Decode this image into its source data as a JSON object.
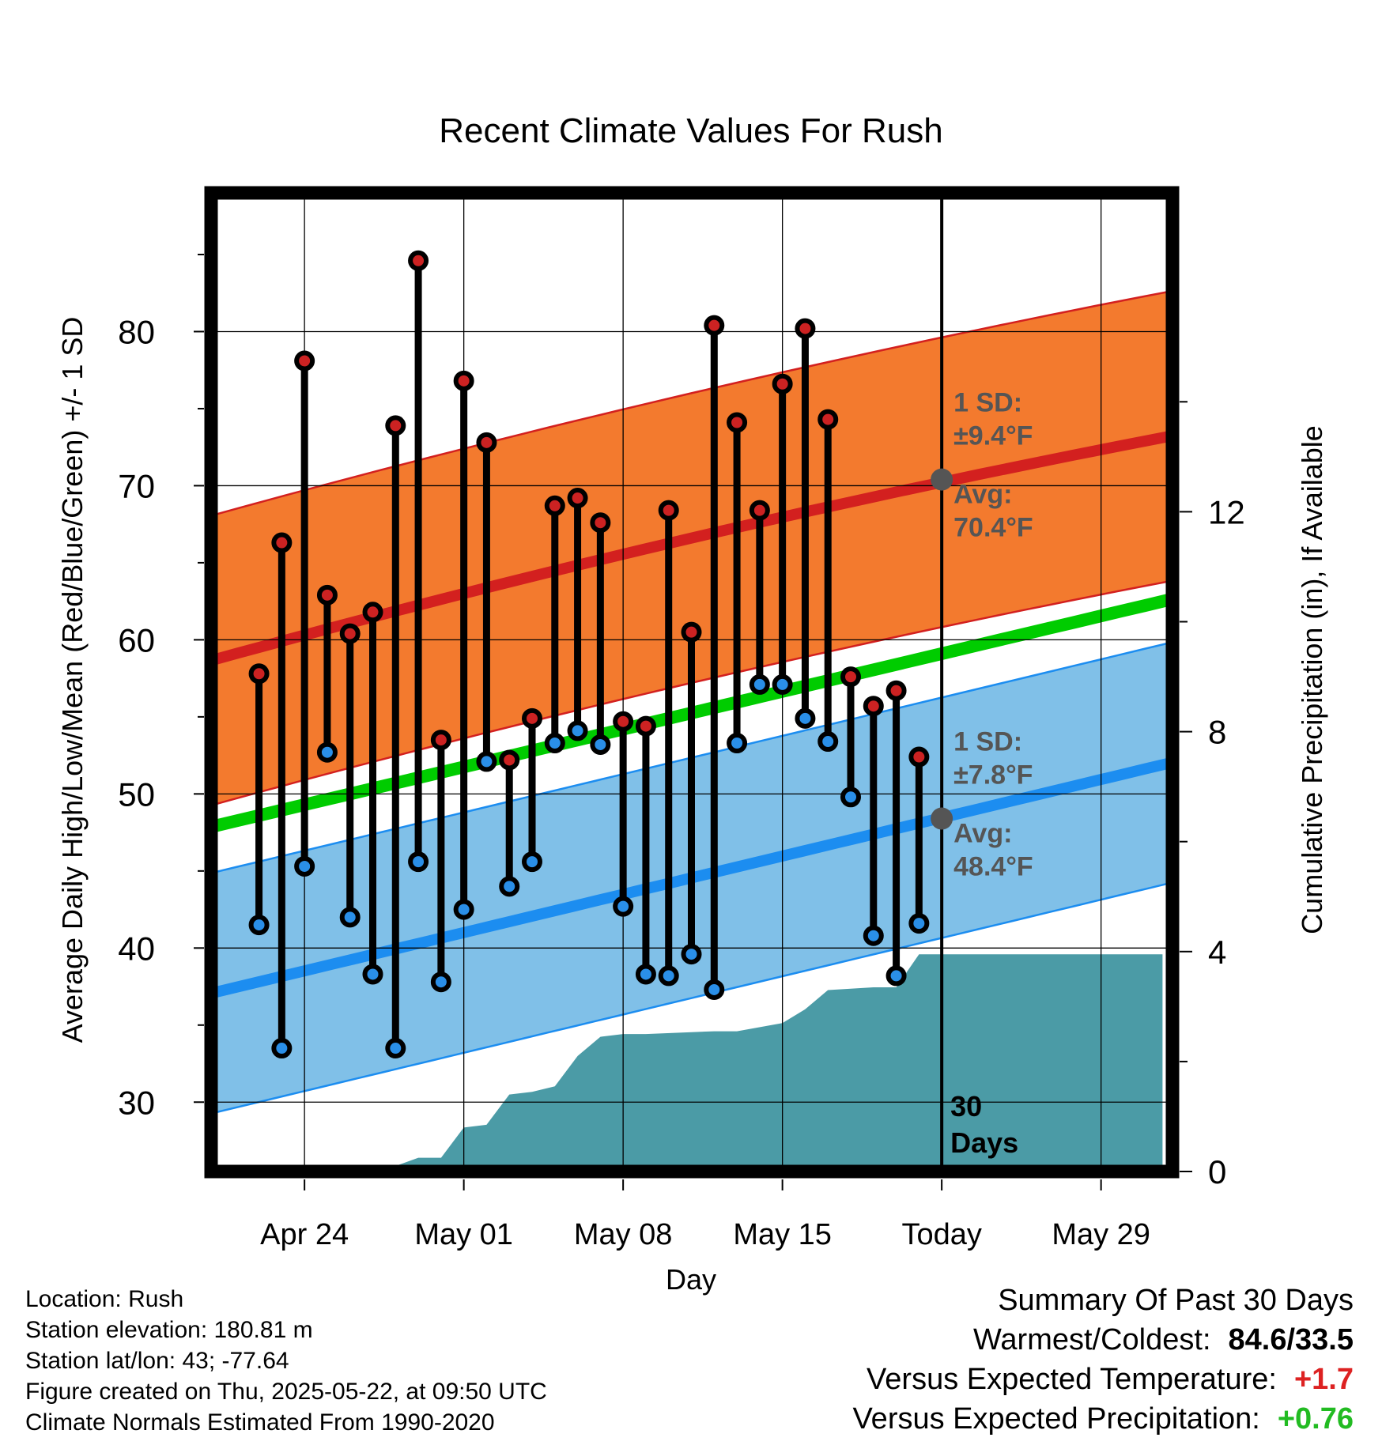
{
  "chart_data": {
    "type": "line",
    "title": "Recent Climate Values For Rush",
    "xlabel": "Day",
    "ylabel": "Average Daily High/Low/Mean (Red/Blue/Green) +/- 1 SD",
    "y2label": "Cumulative Precipitation (in), If Available",
    "x_day_range": [
      -32,
      10
    ],
    "ylim": [
      25.5,
      89
    ],
    "y_ticks": [
      30,
      40,
      50,
      60,
      70,
      80
    ],
    "y2lim": [
      0,
      17.8
    ],
    "y2_ticks": [
      0,
      4,
      8,
      12
    ],
    "x_ticks": [
      {
        "day": -28,
        "label": "Apr 24"
      },
      {
        "day": -21,
        "label": "May 01"
      },
      {
        "day": -14,
        "label": "May 08"
      },
      {
        "day": -7,
        "label": "May 15"
      },
      {
        "day": 0,
        "label": "Today"
      },
      {
        "day": 7,
        "label": "May 29"
      }
    ],
    "days": [
      -30,
      -29,
      -28,
      -27,
      -26,
      -25,
      -24,
      -23,
      -22,
      -21,
      -20,
      -19,
      -18,
      -17,
      -16,
      -15,
      -14,
      -13,
      -12,
      -11,
      -10,
      -9,
      -8,
      -7,
      -6,
      -5,
      -4,
      -3,
      -2,
      -1
    ],
    "highs": [
      57.8,
      66.3,
      78.1,
      62.9,
      60.4,
      61.8,
      73.9,
      84.6,
      53.5,
      76.8,
      72.8,
      52.2,
      54.9,
      68.7,
      69.2,
      67.6,
      54.7,
      54.4,
      68.4,
      60.5,
      80.4,
      74.1,
      68.4,
      76.6,
      80.2,
      74.3,
      57.6,
      55.7,
      56.7,
      52.4
    ],
    "lows": [
      41.5,
      33.5,
      45.3,
      52.7,
      42.0,
      38.3,
      33.5,
      45.6,
      37.8,
      42.5,
      52.1,
      44.0,
      45.6,
      53.3,
      54.1,
      53.2,
      42.7,
      38.3,
      38.2,
      39.6,
      37.3,
      53.3,
      57.1,
      57.1,
      54.9,
      53.4,
      49.8,
      40.8,
      38.2,
      41.6
    ],
    "normals": {
      "high_avg": [
        58.7,
        73.2
      ],
      "high_sd": 9.4,
      "low_avg": [
        37.1,
        52.0
      ],
      "low_sd": 7.8,
      "mean_avg": [
        47.9,
        62.6
      ]
    },
    "precip_cumulative": [
      {
        "day": -30,
        "value": 0.0
      },
      {
        "day": -26,
        "value": 0.0
      },
      {
        "day": -25,
        "value": 0.1
      },
      {
        "day": -24,
        "value": 0.1
      },
      {
        "day": -23,
        "value": 0.25
      },
      {
        "day": -22,
        "value": 0.25
      },
      {
        "day": -21,
        "value": 0.8
      },
      {
        "day": -20,
        "value": 0.85
      },
      {
        "day": -19,
        "value": 1.4
      },
      {
        "day": -18,
        "value": 1.45
      },
      {
        "day": -17,
        "value": 1.55
      },
      {
        "day": -16,
        "value": 2.1
      },
      {
        "day": -15,
        "value": 2.45
      },
      {
        "day": -14,
        "value": 2.5
      },
      {
        "day": -13,
        "value": 2.5
      },
      {
        "day": -10,
        "value": 2.55
      },
      {
        "day": -9,
        "value": 2.55
      },
      {
        "day": -7,
        "value": 2.7
      },
      {
        "day": -6,
        "value": 2.95
      },
      {
        "day": -5,
        "value": 3.3
      },
      {
        "day": -3,
        "value": 3.35
      },
      {
        "day": -2,
        "value": 3.35
      },
      {
        "day": -1,
        "value": 3.95
      },
      {
        "day": 9.7,
        "value": 3.95
      }
    ],
    "annotations": {
      "high_sd_label": "1 SD:",
      "high_sd_value": "±9.4°F",
      "high_avg_label": "Avg:",
      "high_avg_value": "70.4°F",
      "high_avg_today": 70.4,
      "low_sd_label": "1 SD:",
      "low_sd_value": "±7.8°F",
      "low_avg_label": "Avg:",
      "low_avg_value": "48.4°F",
      "low_avg_today": 48.4,
      "days_count": "30",
      "days_word": "Days"
    }
  },
  "colors": {
    "high_band": "#f37a2e",
    "high_line": "#d3201f",
    "low_band": "#80c0e8",
    "low_line": "#1c8df0",
    "mean_line": "#00cc00",
    "precip": "#4b9ba6",
    "high_dot": "#cc2222",
    "low_dot": "#2a8fe8",
    "annotation": "#555555",
    "summary_warm": "#dd2222",
    "summary_precip": "#22bb22"
  },
  "info": {
    "location": "Location: Rush",
    "elevation": "Station elevation: 180.81 m",
    "latlon": "Station lat/lon: 43; -77.64",
    "created": "Figure created on Thu, 2025-05-22, at 09:50 UTC",
    "normals_period": "Climate Normals Estimated From 1990-2020"
  },
  "summary": {
    "title": "Summary Of Past 30 Days",
    "warm_cold_label": "Warmest/Coldest:",
    "warm_cold_value": "84.6/33.5",
    "temp_label": "Versus Expected Temperature:",
    "temp_value": "+1.7",
    "precip_label": "Versus Expected Precipitation:",
    "precip_value": "+0.76"
  }
}
